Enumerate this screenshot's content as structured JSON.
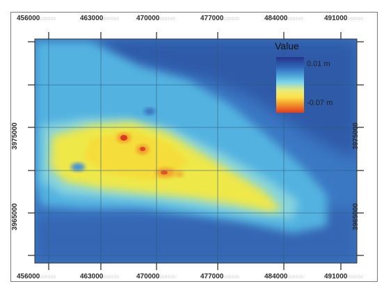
{
  "map": {
    "x_ticks": [
      {
        "value": "456000",
        "faint": "000000"
      },
      {
        "value": "463000",
        "faint": "000000"
      },
      {
        "value": "470000",
        "faint": "000000"
      },
      {
        "value": "477000",
        "faint": "000000"
      },
      {
        "value": "484000",
        "faint": "000000"
      },
      {
        "value": "491000",
        "faint": "000000"
      }
    ],
    "y_ticks": [
      "3975000",
      "3965000"
    ],
    "legend": {
      "title": "Value",
      "high_label": "0.01 m",
      "low_label": "-0.07 m"
    }
  },
  "colors": {
    "deep_blue": "#2f5fb0",
    "mid_blue": "#3e8fd3",
    "cyan": "#4fb6e3",
    "yellow": "#f1e63a",
    "orange": "#f39a2c",
    "red": "#d93a22",
    "grid": "#2f5a7a"
  }
}
